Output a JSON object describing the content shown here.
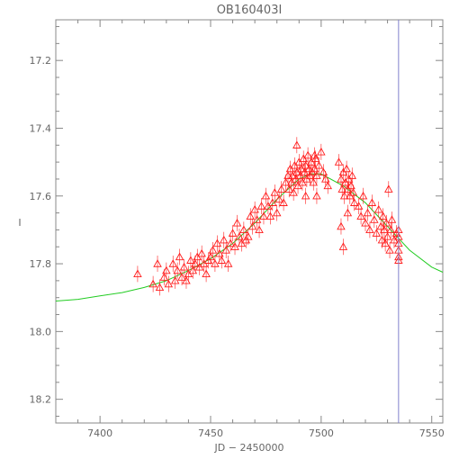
{
  "chart_data": {
    "type": "scatter",
    "title": "OB160403I",
    "xlabel": "JD − 2450000",
    "ylabel": "I",
    "xlim": [
      7380,
      7555
    ],
    "ylim": [
      18.27,
      17.08
    ],
    "y_inverted": true,
    "xticks": [
      7400,
      7450,
      7500,
      7550
    ],
    "yticks": [
      17.2,
      17.4,
      17.6,
      17.8,
      18.0,
      18.2
    ],
    "yticks_labels": [
      "17.2",
      "17.4",
      "17.6",
      "17.8",
      "18.0",
      "18.2"
    ],
    "grid": false,
    "vertical_line_x": 7535,
    "colors": {
      "points": "#ff1e1e",
      "model": "#22cc22",
      "vline": "#8080cc",
      "axes": "#888888"
    },
    "model_curve": {
      "name": "",
      "x": [
        7380,
        7390,
        7400,
        7410,
        7420,
        7430,
        7440,
        7450,
        7460,
        7470,
        7480,
        7490,
        7495,
        7500,
        7510,
        7520,
        7530,
        7540,
        7550,
        7555
      ],
      "y": [
        17.91,
        17.905,
        17.895,
        17.885,
        17.87,
        17.85,
        17.82,
        17.785,
        17.74,
        17.68,
        17.61,
        17.55,
        17.535,
        17.535,
        17.57,
        17.62,
        17.69,
        17.76,
        17.81,
        17.825
      ]
    },
    "series": [
      {
        "name": "",
        "points": [
          [
            7417,
            17.83
          ],
          [
            7424,
            17.86
          ],
          [
            7426,
            17.8
          ],
          [
            7427,
            17.87
          ],
          [
            7429,
            17.84
          ],
          [
            7430,
            17.82
          ],
          [
            7431,
            17.86
          ],
          [
            7433,
            17.8
          ],
          [
            7434,
            17.85
          ],
          [
            7435,
            17.82
          ],
          [
            7436,
            17.78
          ],
          [
            7437,
            17.84
          ],
          [
            7438,
            17.81
          ],
          [
            7439,
            17.85
          ],
          [
            7440,
            17.83
          ],
          [
            7441,
            17.79
          ],
          [
            7442,
            17.82
          ],
          [
            7443,
            17.8
          ],
          [
            7444,
            17.78
          ],
          [
            7445,
            17.81
          ],
          [
            7446,
            17.77
          ],
          [
            7447,
            17.8
          ],
          [
            7448,
            17.83
          ],
          [
            7449,
            17.79
          ],
          [
            7450,
            17.78
          ],
          [
            7451,
            17.76
          ],
          [
            7452,
            17.8
          ],
          [
            7453,
            17.74
          ],
          [
            7454,
            17.77
          ],
          [
            7455,
            17.79
          ],
          [
            7456,
            17.73
          ],
          [
            7457,
            17.76
          ],
          [
            7458,
            17.8
          ],
          [
            7459,
            17.74
          ],
          [
            7460,
            17.71
          ],
          [
            7461,
            17.75
          ],
          [
            7462,
            17.68
          ],
          [
            7463,
            17.72
          ],
          [
            7464,
            17.74
          ],
          [
            7465,
            17.7
          ],
          [
            7466,
            17.73
          ],
          [
            7467,
            17.72
          ],
          [
            7468,
            17.66
          ],
          [
            7469,
            17.69
          ],
          [
            7470,
            17.64
          ],
          [
            7471,
            17.67
          ],
          [
            7472,
            17.7
          ],
          [
            7473,
            17.63
          ],
          [
            7474,
            17.66
          ],
          [
            7475,
            17.6
          ],
          [
            7476,
            17.63
          ],
          [
            7477,
            17.66
          ],
          [
            7478,
            17.62
          ],
          [
            7479,
            17.59
          ],
          [
            7480,
            17.65
          ],
          [
            7481,
            17.61
          ],
          [
            7482,
            17.58
          ],
          [
            7483,
            17.62
          ],
          [
            7484,
            17.56
          ],
          [
            7485,
            17.54
          ],
          [
            7485.5,
            17.58
          ],
          [
            7486,
            17.52
          ],
          [
            7486.5,
            17.56
          ],
          [
            7487,
            17.54
          ],
          [
            7487.5,
            17.59
          ],
          [
            7488,
            17.51
          ],
          [
            7488.5,
            17.55
          ],
          [
            7489,
            17.53
          ],
          [
            7489.5,
            17.57
          ],
          [
            7490,
            17.5
          ],
          [
            7490.5,
            17.54
          ],
          [
            7491,
            17.52
          ],
          [
            7491.5,
            17.56
          ],
          [
            7492,
            17.49
          ],
          [
            7492.5,
            17.53
          ],
          [
            7493,
            17.51
          ],
          [
            7493.5,
            17.55
          ],
          [
            7494,
            17.48
          ],
          [
            7494.5,
            17.52
          ],
          [
            7495,
            17.54
          ],
          [
            7495.5,
            17.5
          ],
          [
            7496,
            17.53
          ],
          [
            7496.5,
            17.56
          ],
          [
            7497,
            17.52
          ],
          [
            7497.5,
            17.49
          ],
          [
            7498,
            17.54
          ],
          [
            7499,
            17.51
          ],
          [
            7500,
            17.47
          ],
          [
            7501,
            17.53
          ],
          [
            7502,
            17.55
          ],
          [
            7503,
            17.57
          ],
          [
            7489,
            17.45
          ],
          [
            7497,
            17.48
          ],
          [
            7493,
            17.6
          ],
          [
            7498,
            17.6
          ],
          [
            7508,
            17.5
          ],
          [
            7509,
            17.55
          ],
          [
            7509.5,
            17.58
          ],
          [
            7510,
            17.53
          ],
          [
            7510.5,
            17.6
          ],
          [
            7511,
            17.56
          ],
          [
            7511.5,
            17.52
          ],
          [
            7512,
            17.58
          ],
          [
            7512.5,
            17.55
          ],
          [
            7513,
            17.6
          ],
          [
            7513.5,
            17.57
          ],
          [
            7514,
            17.54
          ],
          [
            7514.5,
            17.59
          ],
          [
            7515,
            17.62
          ],
          [
            7510,
            17.75
          ],
          [
            7509,
            17.69
          ],
          [
            7512,
            17.65
          ],
          [
            7517,
            17.63
          ],
          [
            7518,
            17.66
          ],
          [
            7519,
            17.6
          ],
          [
            7520,
            17.68
          ],
          [
            7521,
            17.65
          ],
          [
            7522,
            17.7
          ],
          [
            7523,
            17.62
          ],
          [
            7524,
            17.67
          ],
          [
            7525,
            17.71
          ],
          [
            7526,
            17.64
          ],
          [
            7527,
            17.69
          ],
          [
            7527.5,
            17.73
          ],
          [
            7528,
            17.66
          ],
          [
            7528.5,
            17.7
          ],
          [
            7529,
            17.74
          ],
          [
            7529.5,
            17.68
          ],
          [
            7530,
            17.72
          ],
          [
            7530.5,
            17.58
          ],
          [
            7531,
            17.76
          ],
          [
            7531.5,
            17.7
          ],
          [
            7532,
            17.67
          ],
          [
            7533,
            17.73
          ],
          [
            7534,
            17.71
          ],
          [
            7535,
            17.7
          ],
          [
            7535,
            17.72
          ],
          [
            7535,
            17.74
          ],
          [
            7535,
            17.76
          ],
          [
            7535,
            17.78
          ],
          [
            7535,
            17.79
          ]
        ]
      }
    ]
  }
}
